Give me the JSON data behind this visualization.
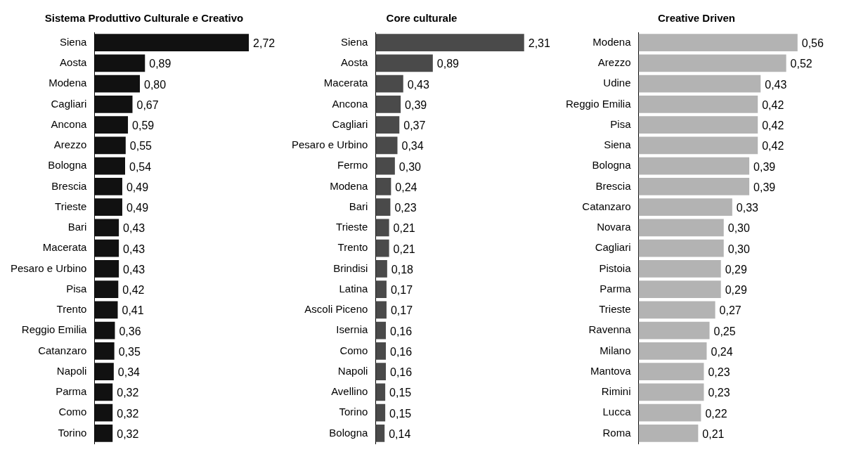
{
  "chart_data": [
    {
      "type": "bar",
      "orientation": "horizontal",
      "tick_labels": "y",
      "title": "Sistema Produttivo Culturale e Creativo",
      "categories": [
        "Siena",
        "Aosta",
        "Modena",
        "Cagliari",
        "Ancona",
        "Arezzo",
        "Bologna",
        "Brescia",
        "Trieste",
        "Bari",
        "Macerata",
        "Pesaro e Urbino",
        "Pisa",
        "Trento",
        "Reggio Emilia",
        "Catanzaro",
        "Napoli",
        "Parma",
        "Como",
        "Torino"
      ],
      "color": "#111111",
      "values": [
        2.72,
        0.89,
        0.8,
        0.67,
        0.59,
        0.55,
        0.54,
        0.49,
        0.49,
        0.43,
        0.43,
        0.43,
        0.42,
        0.41,
        0.36,
        0.35,
        0.34,
        0.32,
        0.32,
        0.32
      ],
      "value_labels": [
        "2,72",
        "0,89",
        "0,80",
        "0,67",
        "0,59",
        "0,55",
        "0,54",
        "0,49",
        "0,49",
        "0,43",
        "0,43",
        "0,43",
        "0,42",
        "0,41",
        "0,36",
        "0,35",
        "0,34",
        "0,32",
        "0,32",
        "0,32"
      ]
    },
    {
      "type": "bar",
      "orientation": "horizontal",
      "tick_labels": "y",
      "title": "Core culturale",
      "categories": [
        "Siena",
        "Aosta",
        "Macerata",
        "Ancona",
        "Cagliari",
        "Pesaro e Urbino",
        "Fermo",
        "Modena",
        "Bari",
        "Trieste",
        "Trento",
        "Brindisi",
        "Latina",
        "Ascoli Piceno",
        "Isernia",
        "Como",
        "Napoli",
        "Avellino",
        "Torino",
        "Bologna"
      ],
      "color": "#4a4a4a",
      "values": [
        2.31,
        0.89,
        0.43,
        0.39,
        0.37,
        0.34,
        0.3,
        0.24,
        0.23,
        0.21,
        0.21,
        0.18,
        0.17,
        0.17,
        0.16,
        0.16,
        0.16,
        0.15,
        0.15,
        0.14
      ],
      "value_labels": [
        "2,31",
        "0,89",
        "0,43",
        "0,39",
        "0,37",
        "0,34",
        "0,30",
        "0,24",
        "0,23",
        "0,21",
        "0,21",
        "0,18",
        "0,17",
        "0,17",
        "0,16",
        "0,16",
        "0,16",
        "0,15",
        "0,15",
        "0,14"
      ]
    },
    {
      "type": "bar",
      "orientation": "horizontal",
      "tick_labels": "y",
      "title": "Creative Driven",
      "categories": [
        "Modena",
        "Arezzo",
        "Udine",
        "Reggio Emilia",
        "Pisa",
        "Siena",
        "Bologna",
        "Brescia",
        "Catanzaro",
        "Novara",
        "Cagliari",
        "Pistoia",
        "Parma",
        "Trieste",
        "Ravenna",
        "Milano",
        "Mantova",
        "Rimini",
        "Lucca",
        "Roma"
      ],
      "color": "#b3b3b3",
      "values": [
        0.56,
        0.52,
        0.43,
        0.42,
        0.42,
        0.42,
        0.39,
        0.39,
        0.33,
        0.3,
        0.3,
        0.29,
        0.29,
        0.27,
        0.25,
        0.24,
        0.23,
        0.23,
        0.22,
        0.21
      ],
      "value_labels": [
        "0,56",
        "0,52",
        "0,43",
        "0,42",
        "0,42",
        "0,42",
        "0,39",
        "0,39",
        "0,33",
        "0,30",
        "0,30",
        "0,29",
        "0,29",
        "0,27",
        "0,25",
        "0,24",
        "0,23",
        "0,23",
        "0,22",
        "0,21"
      ]
    }
  ]
}
